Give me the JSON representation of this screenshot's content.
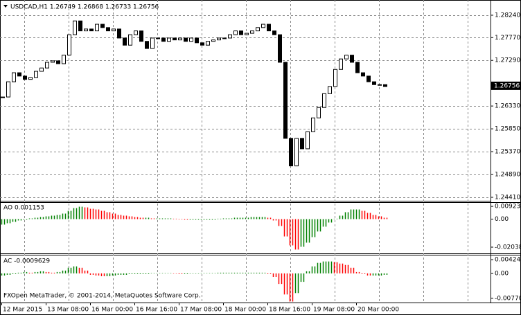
{
  "chart_data": [
    {
      "type": "candlestick",
      "title": "USDCAD,H1  1.26749 1.26868 1.26733 1.26756",
      "values": [
        1.2652,
        1.2684,
        1.2703,
        1.2696,
        1.2689,
        1.2693,
        1.2706,
        1.2713,
        1.2725,
        1.2728,
        1.2722,
        1.274,
        1.2783,
        1.2812,
        1.2791,
        1.2795,
        1.2791,
        1.2805,
        1.2798,
        1.2791,
        1.2795,
        1.2776,
        1.2761,
        1.2783,
        1.2791,
        1.2769,
        1.2754,
        1.2776,
        1.2776,
        1.2769,
        1.2776,
        1.2772,
        1.2776,
        1.2769,
        1.2776,
        1.2766,
        1.2761,
        1.2769,
        1.2772,
        1.2776,
        1.2776,
        1.2783,
        1.2791,
        1.2783,
        1.2786,
        1.2791,
        1.2798,
        1.2805,
        1.2791,
        1.2783,
        1.2725,
        1.2565,
        1.2507,
        1.2565,
        1.2543,
        1.2579,
        1.2608,
        1.263,
        1.2659,
        1.2674,
        1.271,
        1.2732,
        1.274,
        1.2725,
        1.2703,
        1.2696,
        1.2684,
        1.2678,
        1.2678,
        1.2674
      ],
      "up_color": "#ffffff",
      "down_color": "#000000",
      "ylim": [
        1.24337,
        1.2856
      ],
      "yticks": [
        {
          "value": 1.2824,
          "label": "1.28240"
        },
        {
          "value": 1.2777,
          "label": "1.27770"
        },
        {
          "value": 1.2729,
          "label": "1.27290"
        },
        {
          "value": 1.2633,
          "label": "1.26330"
        },
        {
          "value": 1.2585,
          "label": "1.25850"
        },
        {
          "value": 1.2537,
          "label": "1.25370"
        },
        {
          "value": 1.2489,
          "label": "1.24890"
        },
        {
          "value": 1.2441,
          "label": "1.24410"
        }
      ],
      "last_price": 1.26756,
      "grid": true
    },
    {
      "type": "histogram",
      "title": "AO 0.001153",
      "up_color": "#008000",
      "down_color": "#ff0000",
      "values": [
        -0.004,
        -0.003,
        -0.002,
        -0.001,
        -0.0005,
        0.0005,
        0.001,
        0.0015,
        0.002,
        0.0025,
        0.003,
        0.004,
        0.006,
        0.008,
        0.009,
        0.0085,
        0.0075,
        0.007,
        0.006,
        0.005,
        0.004,
        0.003,
        0.0025,
        0.002,
        0.0015,
        0.001,
        0.001,
        0.0005,
        0.0005,
        0.0005,
        0.0005,
        0.0003,
        -0.0003,
        -0.0005,
        -0.0005,
        -0.0005,
        -0.0005,
        -0.0005,
        -0.0005,
        0.0003,
        0.0005,
        0.0005,
        0.001,
        0.001,
        0.001,
        0.0015,
        0.0015,
        0.0015,
        0.001,
        -0.001,
        -0.005,
        -0.0126,
        -0.0191,
        -0.0221,
        -0.0201,
        -0.0171,
        -0.0131,
        -0.009,
        -0.0055,
        -0.0025,
        0.0003,
        0.0025,
        0.005,
        0.007,
        0.007,
        0.006,
        0.0045,
        0.003,
        0.002,
        0.001
      ],
      "ylim": [
        -0.0249,
        0.0118
      ],
      "yticks": [
        0.009238,
        {
          "value": 0,
          "label": "0.00"
        },
        -0.020382
      ]
    },
    {
      "type": "histogram",
      "title": "AC -0.0009629",
      "up_color": "#008000",
      "down_color": "#ff0000",
      "values": [
        -0.00065,
        -0.00043,
        -0.00022,
        0.00022,
        0.00043,
        0.00022,
        0.00043,
        0.00065,
        0.00043,
        0.00022,
        0.00043,
        0.00087,
        0.00174,
        0.00217,
        0.00174,
        0.00087,
        -0.00043,
        -0.00065,
        -0.00087,
        -0.00087,
        -0.00065,
        -0.00043,
        -0.00043,
        -0.00022,
        -0.00022,
        -0.00022,
        -0.00022,
        0.00011,
        0.00011,
        0.00011,
        0.00011,
        -0.00011,
        -0.00022,
        -0.00022,
        -0.00011,
        -0.00011,
        0.00011,
        0.00011,
        0.00011,
        0.00022,
        0.00022,
        0.00022,
        0.00022,
        0.00022,
        0.00022,
        0.00022,
        0.00022,
        0.00022,
        -0.00022,
        -0.00109,
        -0.00326,
        -0.00651,
        -0.00869,
        -0.00608,
        -0.00261,
        0.00065,
        0.00217,
        0.00326,
        0.00369,
        0.00369,
        0.00347,
        0.00304,
        0.00261,
        0.00174,
        0.00043,
        -0.00022,
        -0.00065,
        -0.00065,
        -0.00065,
        -0.00043
      ],
      "ylim": [
        -0.009006,
        0.005544
      ],
      "yticks": [
        0.004241,
        {
          "value": 0,
          "label": "0.00"
        },
        -0.007703
      ]
    }
  ],
  "time_labels": [
    "12 Mar 2015",
    "13 Mar 08:00",
    "16 Mar 00:00",
    "16 Mar 16:00",
    "17 Mar 08:00",
    "18 Mar 00:00",
    "18 Mar 16:00",
    "19 Mar 08:00",
    "20 Mar 00:00"
  ],
  "footer": "FXOpen MetaTrader, © 2001-2014, MetaQuotes Software Corp."
}
